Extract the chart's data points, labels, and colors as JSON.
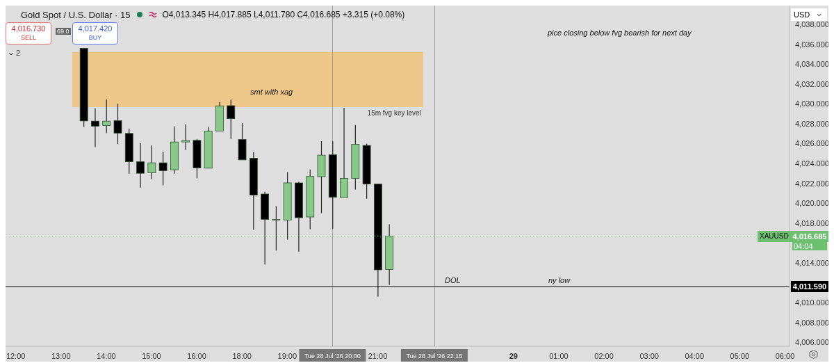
{
  "chart_data": {
    "type": "candlestick",
    "title": "Gold Spot / U.S. Dollar · 15",
    "subtitle": "O4,013.345 H4,017.885 L4,011.780 C4,016.685 +3.315 (+0.08%)",
    "categories": [
      "12:00",
      null,
      null,
      null,
      "13:00",
      null,
      null,
      null,
      "14:00",
      null,
      null,
      null,
      "15:00",
      null,
      null,
      null,
      "16:00",
      null,
      null,
      null,
      "18:00",
      null,
      null,
      null,
      "19:00",
      null,
      null,
      null,
      "Tue 28 Jul '26 20:00",
      null,
      null,
      null,
      "21:00",
      null,
      null,
      null,
      null,
      "Tue 28 Jul '26 22:15",
      null,
      null,
      null,
      null,
      null,
      null,
      "29",
      null,
      null,
      null,
      "01:00",
      null,
      null,
      null,
      "02:00",
      null,
      null,
      null,
      "03:00",
      null,
      null,
      null,
      "04:00",
      null,
      null,
      null,
      "05:00",
      null,
      null,
      null,
      "06:00"
    ],
    "ohlc": [
      null,
      null,
      null,
      null,
      null,
      null,
      [
        4035.6,
        4035.6,
        4027.68,
        4028.29
      ],
      [
        4028.27,
        4029.55,
        4025.65,
        4027.75
      ],
      [
        4027.82,
        4030.43,
        4027.05,
        4028.27
      ],
      [
        4028.31,
        4030.01,
        4025.96,
        4027.05
      ],
      [
        4027.03,
        4027.5,
        4022.98,
        4024.18
      ],
      [
        4024.18,
        4026.05,
        4021.58,
        4023.02
      ],
      [
        4023.07,
        4025.82,
        4022.44,
        4024.07
      ],
      [
        4024.07,
        4025.19,
        4021.81,
        4023.28
      ],
      [
        4023.37,
        4027.73,
        4022.98,
        4026.17
      ],
      [
        4026.17,
        4027.94,
        4025.37,
        4026.31
      ],
      [
        4026.33,
        4026.47,
        4022.51,
        4023.56
      ],
      [
        4023.53,
        4027.68,
        4023.53,
        4027.26
      ],
      [
        4027.26,
        4030.19,
        4027.26,
        4029.8
      ],
      [
        4029.82,
        4030.43,
        4026.47,
        4028.52
      ],
      [
        4026.42,
        4028.06,
        4024.37,
        4024.37
      ],
      [
        4024.53,
        4025.14,
        4017.32,
        4020.83
      ],
      [
        4020.93,
        4021.16,
        4013.84,
        4018.38
      ],
      [
        4018.38,
        4019.71,
        4015.24,
        4018.38
      ],
      [
        4018.31,
        4023.14,
        4016.34,
        4022.05
      ],
      [
        4022.05,
        4022.16,
        4015.13,
        4018.55
      ],
      [
        4018.62,
        4023.39,
        4017.38,
        4022.7
      ],
      [
        4022.68,
        4026.24,
        4019.01,
        4024.84
      ],
      [
        4024.88,
        4026.24,
        4017.45,
        4020.6
      ],
      [
        4020.58,
        4029.61,
        4020.58,
        4022.51
      ],
      [
        4022.51,
        4027.87,
        4021.39,
        4025.93
      ],
      [
        4025.82,
        4026.0,
        4020.46,
        4021.93
      ],
      [
        4021.93,
        4021.93,
        4010.6,
        4013.3
      ],
      [
        4013.345,
        4017.885,
        4011.78,
        4016.685
      ],
      null,
      null,
      null,
      null,
      null,
      null,
      null,
      null,
      null,
      null,
      null,
      null,
      null,
      null,
      null,
      null,
      null,
      null,
      null,
      null,
      null,
      null,
      null,
      null,
      null,
      null,
      null,
      null,
      null,
      null,
      null,
      null,
      null,
      null,
      null
    ],
    "colors": [
      null,
      null,
      null,
      null,
      null,
      null,
      "#000000",
      "#000000",
      "#88c98a",
      "#000000",
      "#000000",
      "#000000",
      "#88c98a",
      "#000000",
      "#88c98a",
      "#88c98a",
      "#000000",
      "#88c98a",
      "#88c98a",
      "#000000",
      "#000000",
      "#000000",
      "#000000",
      "#88c98a",
      "#88c98a",
      "#000000",
      "#88c98a",
      "#88c98a",
      "#000000",
      "#88c98a",
      "#88c98a",
      "#000000",
      "#000000",
      "#88c98a",
      null,
      null,
      null,
      null,
      null,
      null,
      null,
      null,
      null,
      null,
      null,
      null,
      null,
      null,
      null,
      null,
      null,
      null,
      null,
      null,
      null,
      null,
      null,
      null,
      null,
      null,
      null,
      null,
      null,
      null,
      null,
      null,
      null,
      null,
      null
    ],
    "ylim": [
      4005.6,
      4039.9
    ],
    "yticks": [
      {
        "value": 4006,
        "label": "4,006.000"
      },
      {
        "value": 4008,
        "label": "4,008.000"
      },
      {
        "value": 4010,
        "label": "4,010.000"
      },
      {
        "value": 4014,
        "label": "4,014.000"
      },
      {
        "value": 4018,
        "label": "4,018.000"
      },
      {
        "value": 4020,
        "label": "4,020.000"
      },
      {
        "value": 4022,
        "label": "4,022.000"
      },
      {
        "value": 4024,
        "label": "4,024.000"
      },
      {
        "value": 4026,
        "label": "4,026.000"
      },
      {
        "value": 4028,
        "label": "4,028.000"
      },
      {
        "value": 4030,
        "label": "4,030.000"
      },
      {
        "value": 4032,
        "label": "4,032.000"
      },
      {
        "value": 4034,
        "label": "4,034.000"
      },
      {
        "value": 4036,
        "label": "4,036.000"
      },
      {
        "value": 4038,
        "label": "4,038.000"
      }
    ],
    "bands": [
      {
        "axis": "y",
        "from": 4029.7,
        "to": 4035.2,
        "label": "15m fvg key level",
        "color": "#f0c78a"
      }
    ],
    "ref_lines": [
      {
        "axis": "y",
        "value": 4011.59,
        "label": "4,011.590",
        "color": "#000000",
        "line_style": "solid"
      },
      {
        "axis": "y",
        "value": 4016.685,
        "label": "4,016.685",
        "color": "#6cc070",
        "line_style": "dotted"
      },
      {
        "axis": "x",
        "value": "Tue 28 Jul '26 20:00",
        "label": null,
        "color": "#9e9e9e",
        "line_style": "solid"
      },
      {
        "axis": "x",
        "value": "Tue 28 Jul '26 22:15",
        "label": null,
        "color": "#9e9e9e",
        "line_style": "solid"
      }
    ],
    "annotations": [
      "pice closing below fvg bearish for next day",
      "smt with xag",
      "DOL",
      "ny low",
      "4,016.730",
      "SELL",
      "4,017.420",
      "BUY",
      "69.0",
      "2",
      "USD",
      "04:04",
      "XAUUSD"
    ]
  }
}
